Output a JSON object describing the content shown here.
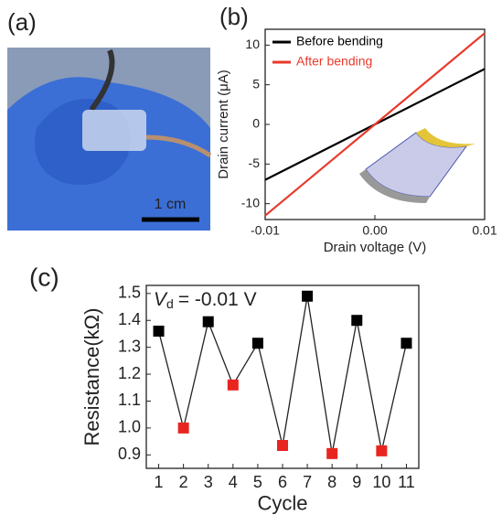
{
  "figure": {
    "panel_labels": [
      "(a)",
      "(b)",
      "(c)"
    ],
    "scale_bar": "1 cm"
  },
  "chart_data": [
    {
      "type": "line",
      "xlabel": "Drain voltage (V)",
      "ylabel": "Drain current (μA)",
      "x": [
        -0.01,
        0.01
      ],
      "series": [
        {
          "name": "Before bending",
          "color": "#000000",
          "values": [
            -7,
            7
          ]
        },
        {
          "name": "After bending",
          "color": "#e8392a",
          "values": [
            -11.5,
            11.5
          ]
        }
      ],
      "xlim": [
        -0.01,
        0.01
      ],
      "xticks": [
        -0.01,
        {
          "value": 0,
          "label": "0.00"
        },
        0.01
      ],
      "ylim": [
        -12,
        12
      ],
      "yticks": [
        -10,
        -5,
        0,
        5,
        10
      ],
      "legend": "top-left",
      "markers": false
    },
    {
      "type": "line",
      "xlabel": "Cycle",
      "ylabel": "Resistance(kΩ)",
      "annotation": {
        "symbol": "V",
        "subscript": "d",
        "text": "= -0.01 V"
      },
      "x": [
        1,
        2,
        3,
        4,
        5,
        6,
        7,
        8,
        9,
        10,
        11
      ],
      "series": [
        {
          "color": "#222222",
          "values": [
            1.36,
            1.0,
            1.395,
            1.16,
            1.315,
            0.935,
            1.49,
            0.905,
            1.4,
            0.915,
            1.315
          ],
          "point_colors": [
            "#000000",
            "#e8251f",
            "#000000",
            "#e8251f",
            "#000000",
            "#e8251f",
            "#000000",
            "#e8251f",
            "#000000",
            "#e8251f",
            "#000000"
          ]
        }
      ],
      "xlim": [
        0.5,
        11.5
      ],
      "xticks": [
        1,
        2,
        3,
        4,
        5,
        6,
        7,
        8,
        9,
        10,
        11
      ],
      "ylim": [
        0.85,
        1.53
      ],
      "yticks": [
        0.9,
        {
          "value": 1.0,
          "label": "1.0"
        },
        1.1,
        1.2,
        1.3,
        1.4,
        1.5
      ],
      "markers": true
    }
  ]
}
